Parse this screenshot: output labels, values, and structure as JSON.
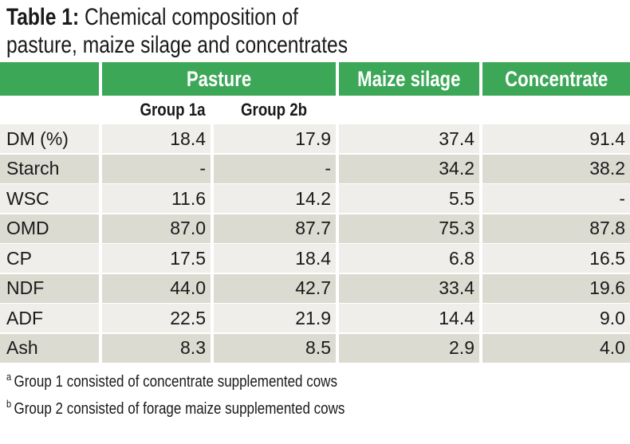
{
  "title": {
    "label": "Table 1:",
    "text": "Chemical composition of",
    "line2": "pasture, maize silage and concentrates"
  },
  "headers": {
    "pasture": "Pasture",
    "maize": "Maize silage",
    "concentrate": "Concentrate",
    "group1": "Group 1a",
    "group2": "Group 2b"
  },
  "rows": [
    {
      "name": "DM (%)",
      "g1": "18.4",
      "g2": "17.9",
      "maize": "37.4",
      "conc": "91.4"
    },
    {
      "name": "Starch",
      "g1": "-",
      "g2": "-",
      "maize": "34.2",
      "conc": "38.2"
    },
    {
      "name": "WSC",
      "g1": "11.6",
      "g2": "14.2",
      "maize": "5.5",
      "conc": "-"
    },
    {
      "name": "OMD",
      "g1": "87.0",
      "g2": "87.7",
      "maize": "75.3",
      "conc": "87.8"
    },
    {
      "name": "CP",
      "g1": "17.5",
      "g2": "18.4",
      "maize": "6.8",
      "conc": "16.5"
    },
    {
      "name": "NDF",
      "g1": "44.0",
      "g2": "42.7",
      "maize": "33.4",
      "conc": "19.6"
    },
    {
      "name": "ADF",
      "g1": "22.5",
      "g2": "21.9",
      "maize": "14.4",
      "conc": "9.0"
    },
    {
      "name": "Ash",
      "g1": "8.3",
      "g2": "8.5",
      "maize": "2.9",
      "conc": "4.0"
    }
  ],
  "footnotes": [
    {
      "mark": "a",
      "text": "Group 1 consisted of  concentrate supplemented cows"
    },
    {
      "mark": "b",
      "text": "Group 2 consisted of  forage maize supplemented cows"
    }
  ],
  "colors": {
    "header": "#3ba757",
    "row_light": "#efeeea",
    "row_dark": "#dcdbd2"
  }
}
